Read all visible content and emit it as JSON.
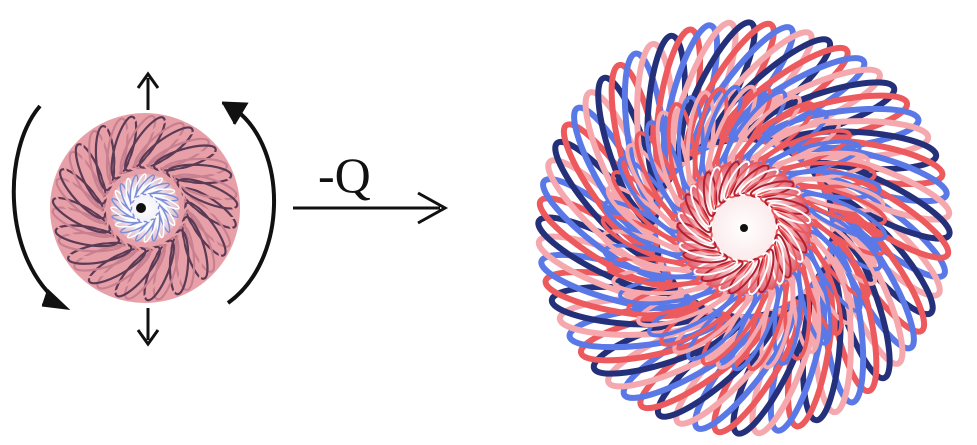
{
  "diagram": {
    "operator_label": "-Q"
  },
  "colors": {
    "background": "#ffffff",
    "arrow": "#111111",
    "small_torus_pink": "#e8a0a8",
    "small_torus_dark": "#5a3a55",
    "small_torus_inner_blue": "#7d8ed8",
    "large_torus_blue": "#5a78e6",
    "large_torus_navy": "#25307a",
    "large_torus_red": "#ec5a5e",
    "large_torus_pink": "#f5a8ae"
  },
  "icons": [
    "arrow-up-icon",
    "arrow-down-icon",
    "rotate-left-arrow-icon",
    "rotate-right-arrow-icon",
    "right-arrow-icon"
  ]
}
